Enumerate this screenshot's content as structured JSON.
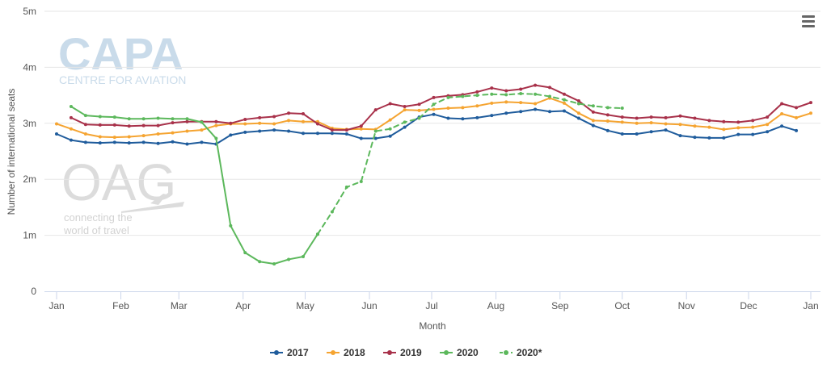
{
  "watermarks": {
    "capa_logo": "CAPA",
    "capa_subtitle": "CENTRE FOR AVIATION",
    "oag_logo": "OAG",
    "oag_tagline_1": "connecting the",
    "oag_tagline_2": "world of travel"
  },
  "menu": {
    "icon": "hamburger-menu-icon"
  },
  "chart_data": {
    "type": "line",
    "xlabel": "Month",
    "ylabel": "Number of international seats",
    "x_range": [
      1,
      53
    ],
    "ylim": [
      0,
      5000000
    ],
    "y_ticks": [
      {
        "value": 0,
        "label": "0"
      },
      {
        "value": 1000000,
        "label": "1m"
      },
      {
        "value": 2000000,
        "label": "2m"
      },
      {
        "value": 3000000,
        "label": "3m"
      },
      {
        "value": 4000000,
        "label": "4m"
      },
      {
        "value": 5000000,
        "label": "5m"
      }
    ],
    "x_ticks": [
      {
        "value": 1,
        "label": "Jan"
      },
      {
        "value": 5.43,
        "label": "Feb"
      },
      {
        "value": 9.43,
        "label": "Mar"
      },
      {
        "value": 13.86,
        "label": "Apr"
      },
      {
        "value": 18.14,
        "label": "May"
      },
      {
        "value": 22.57,
        "label": "Jun"
      },
      {
        "value": 26.86,
        "label": "Jul"
      },
      {
        "value": 31.29,
        "label": "Aug"
      },
      {
        "value": 35.71,
        "label": "Sep"
      },
      {
        "value": 40,
        "label": "Oct"
      },
      {
        "value": 44.43,
        "label": "Nov"
      },
      {
        "value": 48.71,
        "label": "Dec"
      },
      {
        "value": 53,
        "label": "Jan"
      }
    ],
    "grid": true,
    "legend_position": "bottom-center",
    "series": [
      {
        "name": "2017",
        "color": "#1f5c9c",
        "dashed": false,
        "x": [
          1,
          2,
          3,
          4,
          5,
          6,
          7,
          8,
          9,
          10,
          11,
          12,
          13,
          14,
          15,
          16,
          17,
          18,
          19,
          20,
          21,
          22,
          23,
          24,
          25,
          26,
          27,
          28,
          29,
          30,
          31,
          32,
          33,
          34,
          35,
          36,
          37,
          38,
          39,
          40,
          41,
          42,
          43,
          44,
          45,
          46,
          47,
          48,
          49,
          50,
          51,
          52
        ],
        "values": [
          2810000,
          2700000,
          2660000,
          2650000,
          2660000,
          2650000,
          2660000,
          2640000,
          2670000,
          2630000,
          2660000,
          2630000,
          2790000,
          2840000,
          2860000,
          2880000,
          2860000,
          2820000,
          2820000,
          2820000,
          2810000,
          2730000,
          2730000,
          2770000,
          2930000,
          3110000,
          3160000,
          3090000,
          3080000,
          3100000,
          3140000,
          3180000,
          3210000,
          3250000,
          3210000,
          3220000,
          3090000,
          2960000,
          2870000,
          2810000,
          2810000,
          2850000,
          2880000,
          2780000,
          2750000,
          2740000,
          2740000,
          2800000,
          2800000,
          2850000,
          2950000,
          2870000
        ]
      },
      {
        "name": "2018",
        "color": "#f5a431",
        "dashed": false,
        "x": [
          1,
          2,
          3,
          4,
          5,
          6,
          7,
          8,
          9,
          10,
          11,
          12,
          13,
          14,
          15,
          16,
          17,
          18,
          19,
          20,
          21,
          22,
          23,
          24,
          25,
          26,
          27,
          28,
          29,
          30,
          31,
          32,
          33,
          34,
          35,
          36,
          37,
          38,
          39,
          40,
          41,
          42,
          43,
          44,
          45,
          46,
          47,
          48,
          49,
          50,
          51,
          52,
          53
        ],
        "values": [
          2990000,
          2900000,
          2810000,
          2760000,
          2750000,
          2760000,
          2780000,
          2810000,
          2830000,
          2860000,
          2880000,
          2960000,
          2990000,
          2990000,
          3000000,
          2990000,
          3050000,
          3030000,
          3030000,
          2910000,
          2890000,
          2900000,
          2890000,
          3060000,
          3240000,
          3230000,
          3250000,
          3270000,
          3280000,
          3310000,
          3360000,
          3380000,
          3370000,
          3350000,
          3450000,
          3360000,
          3180000,
          3050000,
          3040000,
          3020000,
          3000000,
          3010000,
          2990000,
          2980000,
          2950000,
          2930000,
          2890000,
          2920000,
          2930000,
          2980000,
          3170000,
          3100000,
          3180000
        ]
      },
      {
        "name": "2019",
        "color": "#a8314a",
        "dashed": false,
        "x": [
          2,
          3,
          4,
          5,
          6,
          7,
          8,
          9,
          10,
          11,
          12,
          13,
          14,
          15,
          16,
          17,
          18,
          19,
          20,
          21,
          22,
          23,
          24,
          25,
          26,
          27,
          28,
          29,
          30,
          31,
          32,
          33,
          34,
          35,
          36,
          37,
          38,
          39,
          40,
          41,
          42,
          43,
          44,
          45,
          46,
          47,
          48,
          49,
          50,
          51,
          52,
          53
        ],
        "values": [
          3100000,
          2980000,
          2970000,
          2970000,
          2950000,
          2960000,
          2960000,
          3010000,
          3030000,
          3030000,
          3030000,
          3000000,
          3070000,
          3100000,
          3120000,
          3180000,
          3170000,
          2990000,
          2880000,
          2880000,
          2950000,
          3240000,
          3350000,
          3300000,
          3340000,
          3460000,
          3490000,
          3510000,
          3560000,
          3630000,
          3580000,
          3610000,
          3680000,
          3640000,
          3520000,
          3400000,
          3200000,
          3150000,
          3110000,
          3090000,
          3110000,
          3100000,
          3130000,
          3090000,
          3050000,
          3030000,
          3020000,
          3050000,
          3110000,
          3350000,
          3280000,
          3370000
        ]
      },
      {
        "name": "2020",
        "color": "#5cb85c",
        "dashed": false,
        "x": [
          2,
          3,
          4,
          5,
          6,
          7,
          8,
          9,
          10,
          11,
          12,
          13,
          14,
          15,
          16,
          17,
          18,
          19
        ],
        "values": [
          3300000,
          3140000,
          3120000,
          3110000,
          3080000,
          3080000,
          3090000,
          3080000,
          3080000,
          3020000,
          2730000,
          1170000,
          690000,
          530000,
          490000,
          570000,
          620000,
          1020000
        ]
      },
      {
        "name": "2020*",
        "color": "#5cb85c",
        "dashed": true,
        "x": [
          19,
          20,
          21,
          22,
          23,
          24,
          25,
          26,
          27,
          28,
          29,
          30,
          31,
          32,
          33,
          34,
          35,
          36,
          37,
          38,
          39,
          40
        ],
        "values": [
          1020000,
          1420000,
          1860000,
          1960000,
          2860000,
          2900000,
          3020000,
          3090000,
          3340000,
          3460000,
          3480000,
          3500000,
          3520000,
          3510000,
          3530000,
          3520000,
          3480000,
          3420000,
          3350000,
          3310000,
          3280000,
          3270000
        ]
      }
    ]
  }
}
